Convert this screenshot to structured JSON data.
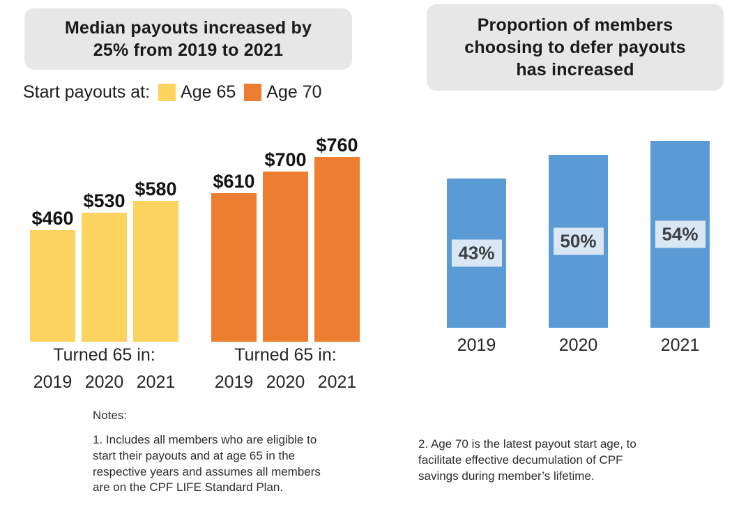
{
  "left_panel": {
    "title": "Median payouts increased by 25% from 2019 to 2021",
    "title_lines": [
      "Median payouts increased by",
      "25% from 2019 to 2021"
    ],
    "legend_label": "Start payouts at:",
    "group_axis_label": "Turned 65 in:"
  },
  "right_panel": {
    "title": "Proportion of members choosing to defer payouts has increased",
    "title_lines": [
      "Proportion of members",
      "choosing to defer payouts",
      "has increased"
    ]
  },
  "colors": {
    "title_box_bg": "#E8E7E7",
    "age65_yellow": "#FBD35E",
    "age70_orange": "#ED7D31",
    "defer_blue": "#5B9BD5",
    "pct_label_bg": "#D9E6F4",
    "pct_label_text": "#3C4043"
  },
  "chart_data": [
    {
      "type": "bar",
      "title": "Median payouts increased by 25% from 2019 to 2021",
      "legend_label": "Start payouts at:",
      "legend_position": "top",
      "xlabel": "Turned 65 in:",
      "categories": [
        "2019",
        "2020",
        "2021"
      ],
      "series": [
        {
          "name": "Age 65",
          "color": "#FBD35E",
          "values": [
            460,
            530,
            580
          ],
          "data_labels": [
            "$460",
            "$530",
            "$580"
          ]
        },
        {
          "name": "Age 70",
          "color": "#ED7D31",
          "values": [
            610,
            700,
            760
          ],
          "data_labels": [
            "$610",
            "$700",
            "$760"
          ]
        }
      ],
      "ylim": [
        0,
        760
      ],
      "grid": false,
      "axis_lines": false
    },
    {
      "type": "bar",
      "title": "Proportion of members choosing to defer payouts has increased",
      "categories": [
        "2019",
        "2020",
        "2021"
      ],
      "values": [
        43,
        50,
        54
      ],
      "data_labels": [
        "43%",
        "50%",
        "54%"
      ],
      "color": "#5B9BD5",
      "label_box": {
        "bg": "#D9E6F4",
        "text_color": "#3C4043"
      },
      "ylim": [
        0,
        60
      ],
      "grid": false,
      "axis_lines": false
    }
  ],
  "notes": {
    "heading": "Notes:",
    "note1": "1. Includes all members who are eligible to start their payouts and at age 65 in the respective years and assumes all members are on the CPF LIFE Standard Plan.",
    "note1_lines": [
      "1. Includes all members who are eligible to",
      "start their payouts and at age 65 in the",
      "respective years and assumes all members",
      "are on the CPF LIFE Standard Plan."
    ],
    "note2": "2. Age 70 is the latest payout start age, to facilitate effective decumulation of CPF savings during member’s lifetime.",
    "note2_lines": [
      "2. Age 70 is the latest payout start age, to",
      "facilitate effective decumulation of CPF",
      "savings during member’s lifetime."
    ]
  }
}
